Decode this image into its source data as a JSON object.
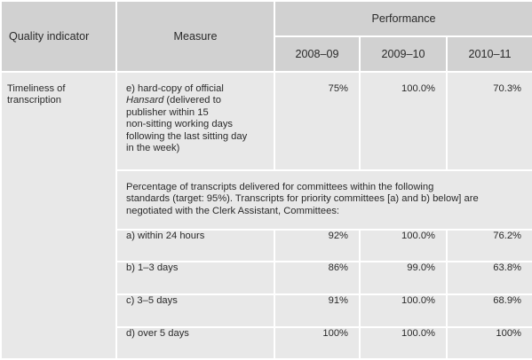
{
  "header": {
    "quality_indicator": "Quality indicator",
    "measure": "Measure",
    "performance": "Performance",
    "years": [
      "2008–09",
      "2009–10",
      "2010–11"
    ]
  },
  "indicator": {
    "label_line1": "Timeliness of",
    "label_line2": "transcription"
  },
  "row_e": {
    "measure_prefix": "e) hard-copy of official",
    "measure_italic": "Hansard",
    "measure_line2_rest": " (delivered to",
    "measure_line3": "publisher within 15",
    "measure_line4": "non-sitting working days",
    "measure_line5": "following the last sitting day",
    "measure_line6": "in the week)",
    "values": [
      "75%",
      "100.0%",
      "70.3%"
    ]
  },
  "committee_note": {
    "line1": "Percentage of transcripts delivered for committees within the following",
    "line2": "standards (target: 95%). Transcripts for priority committees [a) and b) below] are",
    "line3": "negotiated with the Clerk Assistant, Committees:"
  },
  "rows": [
    {
      "label": "a) within 24 hours",
      "values": [
        "92%",
        "100.0%",
        "76.2%"
      ]
    },
    {
      "label": "b) 1–3 days",
      "values": [
        "86%",
        "99.0%",
        "63.8%"
      ]
    },
    {
      "label": "c) 3–5 days",
      "values": [
        "91%",
        "100.0%",
        "68.9%"
      ]
    },
    {
      "label": "d) over 5 days",
      "values": [
        "100%",
        "100.0%",
        "100%"
      ]
    }
  ]
}
